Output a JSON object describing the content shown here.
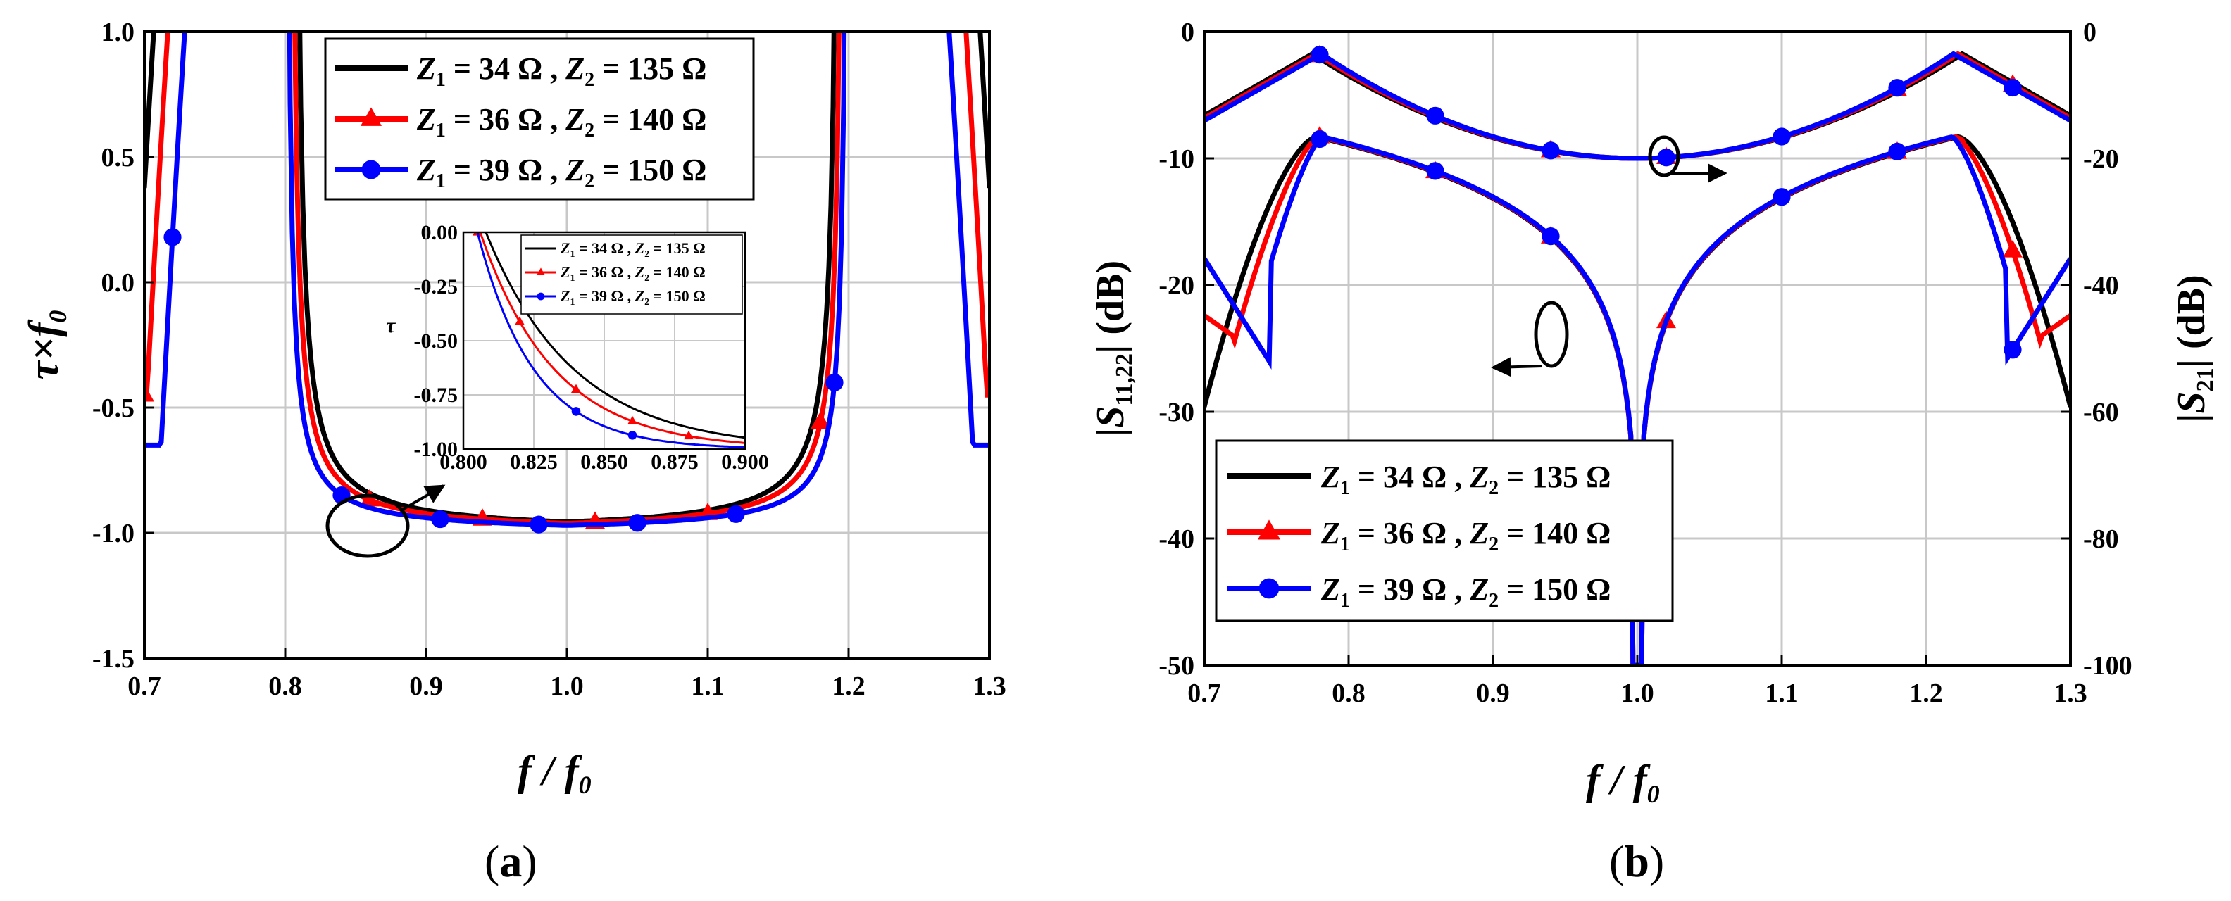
{
  "chart_data": [
    {
      "type": "line",
      "panel_label": "(a)",
      "xlabel_main": "f",
      "xlabel_sub": "0",
      "ylabel_main": "τ×f",
      "ylabel_sub": "0",
      "xlim": [
        0.7,
        1.3
      ],
      "ylim": [
        -1.5,
        1.0
      ],
      "x_ticks": [
        "0.7",
        "0.8",
        "0.9",
        "1.0",
        "1.1",
        "1.2",
        "1.3"
      ],
      "y_ticks": [
        "1.0",
        "0.5",
        "0.0",
        "-0.5",
        "-1.0",
        "-1.5"
      ],
      "grid": true,
      "legend_position": "top-right",
      "series": [
        {
          "name": "Z1 = 34 Ω , Z2 = 135 Ω",
          "color": "#000000",
          "marker": "none",
          "legend": {
            "a": "Z",
            "b": "1",
            "c": " = 34 Ω , ",
            "d": "Z",
            "e": "2",
            "f": " = 135 Ω"
          }
        },
        {
          "name": "Z1 = 36 Ω , Z2 = 140 Ω",
          "color": "#ff0000",
          "marker": "triangle",
          "legend": {
            "a": "Z",
            "b": "1",
            "c": " = 36 Ω , ",
            "d": "Z",
            "e": "2",
            "f": " = 140 Ω"
          }
        },
        {
          "name": "Z1 = 39 Ω , Z2 = 150 Ω",
          "color": "#0000ff",
          "marker": "circle",
          "legend": {
            "a": "Z",
            "b": "1",
            "c": " = 39 Ω , ",
            "d": "Z",
            "e": "2",
            "f": " = 150 Ω"
          }
        }
      ],
      "inset": {
        "xlim": [
          0.8,
          0.9
        ],
        "ylim": [
          -1.0,
          0.0
        ],
        "x_ticks": [
          "0.800",
          "0.825",
          "0.850",
          "0.875",
          "0.900"
        ],
        "y_ticks": [
          "0.00",
          "-0.25",
          "-0.50",
          "-0.75",
          "-1.00"
        ],
        "ylabel": "τ"
      }
    },
    {
      "type": "line",
      "panel_label": "(b)",
      "xlabel_main": "f",
      "xlabel_sub": "0",
      "ylabel_left": {
        "pre": "|",
        "s": "S",
        "sub": "11,22",
        "post": "| (dB)"
      },
      "ylabel_right": {
        "pre": "|",
        "s": "S",
        "sub": "21",
        "post": "| (dB)"
      },
      "xlim": [
        0.7,
        1.3
      ],
      "ylim_left": [
        -50,
        0
      ],
      "ylim_right": [
        -100,
        0
      ],
      "x_ticks": [
        "0.7",
        "0.8",
        "0.9",
        "1.0",
        "1.1",
        "1.2",
        "1.3"
      ],
      "y_ticks_left": [
        "0",
        "-10",
        "-20",
        "-30",
        "-40",
        "-50"
      ],
      "y_ticks_right": [
        "0",
        "-20",
        "-40",
        "-60",
        "-80",
        "-100"
      ],
      "grid": true,
      "legend_position": "bottom-left",
      "series": [
        {
          "name": "Z1 = 34 Ω , Z2 = 135 Ω",
          "color": "#000000",
          "marker": "none"
        },
        {
          "name": "Z1 = 36 Ω , Z2 = 140 Ω",
          "color": "#ff0000",
          "marker": "triangle"
        },
        {
          "name": "Z1 = 39 Ω , Z2 = 150 Ω",
          "color": "#0000ff",
          "marker": "circle"
        }
      ]
    }
  ]
}
